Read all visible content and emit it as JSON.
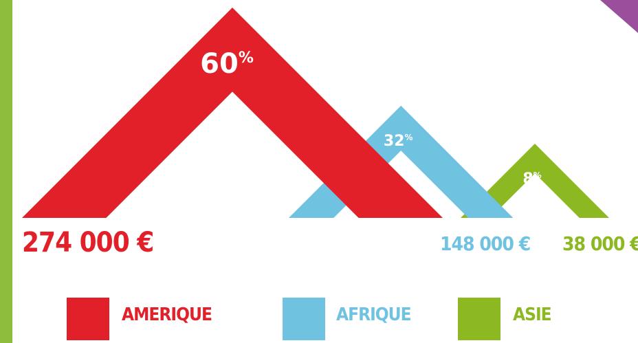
{
  "colors": {
    "left_bar": "#8dbd3c",
    "corner": "#9a4f9c"
  },
  "chart_data": {
    "type": "area",
    "title": "",
    "series": [
      {
        "name": "AMERIQUE",
        "percent": 60,
        "percent_label": "60%",
        "amount_label": "274 000 €",
        "amount": 274000,
        "color": "#e1202a"
      },
      {
        "name": "AFRIQUE",
        "percent": 32,
        "percent_label": "32%",
        "amount_label": "148 000 €",
        "amount": 148000,
        "color": "#6fc3e1"
      },
      {
        "name": "ASIE",
        "percent": 8,
        "percent_label": "8%",
        "amount_label": "38 000 €",
        "amount": 38000,
        "color": "#8cb821"
      }
    ]
  }
}
